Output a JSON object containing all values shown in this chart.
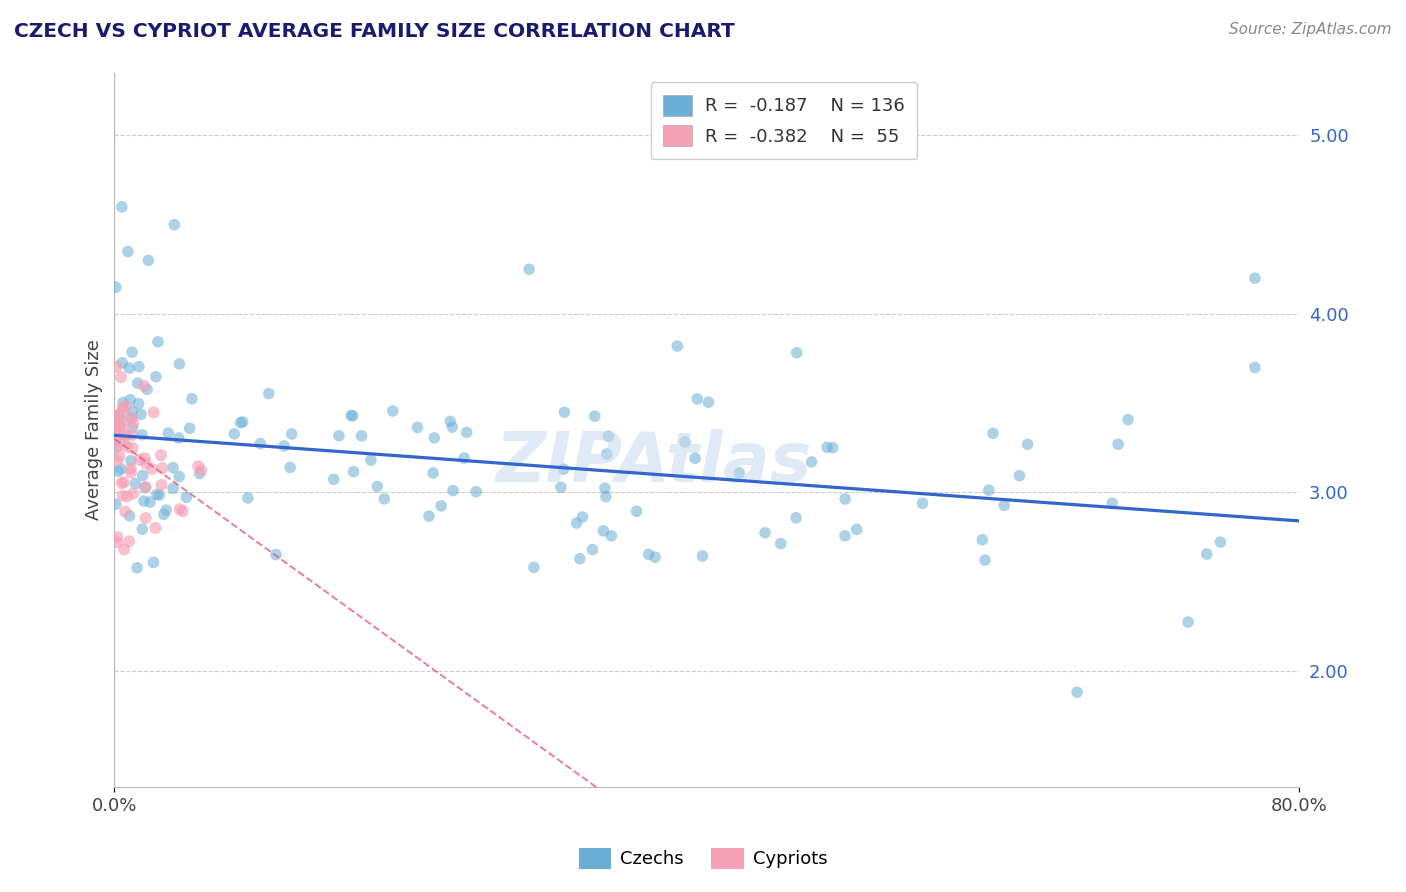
{
  "title": "CZECH VS CYPRIOT AVERAGE FAMILY SIZE CORRELATION CHART",
  "source": "Source: ZipAtlas.com",
  "ylabel": "Average Family Size",
  "xlim": [
    0.0,
    0.8
  ],
  "ylim": [
    1.35,
    5.35
  ],
  "yticks": [
    2.0,
    3.0,
    4.0,
    5.0
  ],
  "xticks": [
    0.0,
    0.8
  ],
  "xticklabels": [
    "0.0%",
    "80.0%"
  ],
  "czech_color": "#6aaed6",
  "cypriot_color": "#f4a0b5",
  "czech_R": -0.187,
  "czech_N": 136,
  "cypriot_R": -0.382,
  "cypriot_N": 55,
  "trend_color_czech": "#3366cc",
  "trend_color_cypriot": "#e06080",
  "watermark": "ZIPAtlas",
  "watermark_color": "#c5d9ef",
  "background_color": "#ffffff",
  "title_color": "#1a1a6e",
  "tick_color_blue": "#3366cc",
  "legend_r_color": "#e03060",
  "legend_n_color": "#3366cc",
  "seed": 12
}
